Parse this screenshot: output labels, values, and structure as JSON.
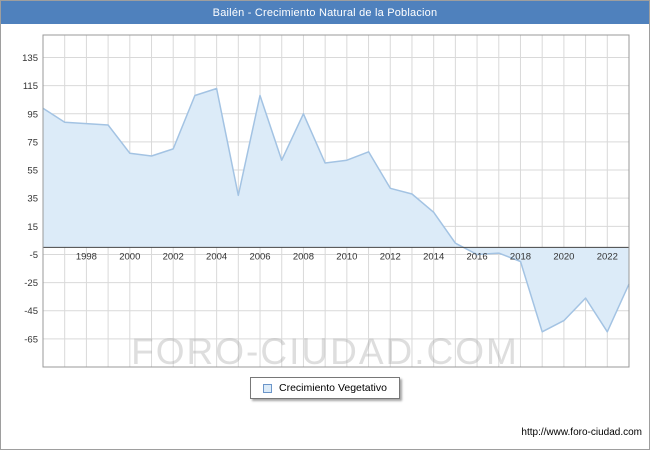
{
  "title": "Bailén - Crecimiento Natural de la Poblacion",
  "watermark": "FORO-CIUDAD.COM",
  "legend": {
    "label": "Crecimiento Vegetativo"
  },
  "footer_url": "http://www.foro-ciudad.com",
  "colors": {
    "titlebar": "#4f81bd",
    "grid": "#d9d9d9",
    "axis": "#444444",
    "plot_border": "#999999",
    "tick_text": "#333333"
  },
  "chart_data": {
    "type": "area",
    "title": "Bailén - Crecimiento Natural de la Poblacion",
    "x": [
      1996,
      1997,
      1998,
      1999,
      2000,
      2001,
      2002,
      2003,
      2004,
      2005,
      2006,
      2007,
      2008,
      2009,
      2010,
      2011,
      2012,
      2013,
      2014,
      2015,
      2016,
      2017,
      2018,
      2019,
      2020,
      2021,
      2022,
      2023
    ],
    "series": [
      {
        "name": "Crecimiento Vegetativo",
        "values": [
          99,
          89,
          88,
          87,
          67,
          65,
          70,
          108,
          113,
          37,
          108,
          62,
          95,
          60,
          62,
          68,
          42,
          38,
          25,
          3,
          -5,
          -4,
          -10,
          -60,
          -52,
          -36,
          -60,
          -26
        ]
      }
    ],
    "y_ticks": [
      135,
      115,
      95,
      75,
      55,
      35,
      15,
      -5,
      -25,
      -45,
      -65
    ],
    "x_tick_labels": [
      1998,
      2000,
      2002,
      2004,
      2006,
      2008,
      2010,
      2012,
      2014,
      2016,
      2018,
      2020,
      2022
    ],
    "ylim": [
      -85,
      151
    ],
    "baseline": 0,
    "grid": true,
    "legend_position": "bottom",
    "line_color": "#a3c3e3",
    "fill_color": "#dcebf8"
  }
}
